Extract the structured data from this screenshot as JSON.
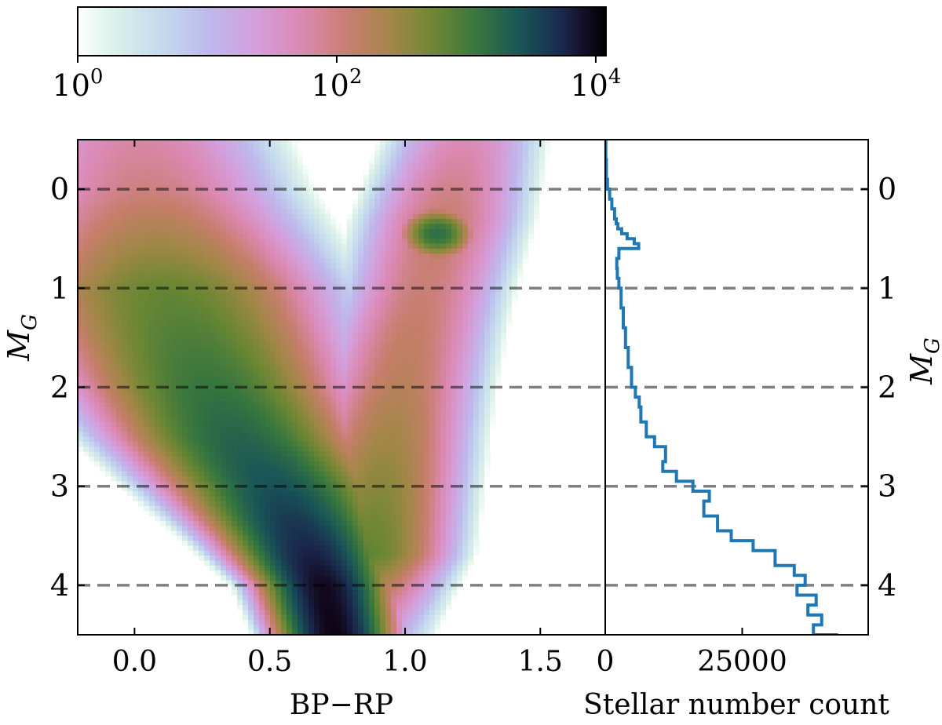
{
  "chart_data": [
    {
      "type": "heatmap",
      "xlabel": "BP−RP",
      "ylabel_main": "M",
      "ylabel_sub": "G",
      "xlim": [
        -0.21,
        1.74
      ],
      "ylim": [
        4.5,
        -0.5
      ],
      "xticks": [
        {
          "value": 0.0,
          "label": "0.0"
        },
        {
          "value": 0.5,
          "label": "0.5"
        },
        {
          "value": 1.0,
          "label": "1.0"
        },
        {
          "value": 1.5,
          "label": "1.5"
        }
      ],
      "yticks": [
        {
          "value": 0,
          "label": "0"
        },
        {
          "value": 1,
          "label": "1"
        },
        {
          "value": 2,
          "label": "2"
        },
        {
          "value": 3,
          "label": "3"
        },
        {
          "value": 4,
          "label": "4"
        }
      ],
      "dashed_lines_at": [
        0,
        1,
        2,
        3,
        4
      ],
      "colorbar": {
        "scale": "log",
        "range": [
          1,
          12000
        ],
        "colormap": "cubehelix_r",
        "tick_labels": [
          {
            "value": 1,
            "base": "10",
            "exp": "0"
          },
          {
            "value": 100,
            "base": "10",
            "exp": "2"
          },
          {
            "value": 10000,
            "base": "10",
            "exp": "4"
          }
        ]
      },
      "density_features": [
        {
          "feature": "main-sequence-turnoff",
          "peak_bp_rp": 0.72,
          "peak_mg": 4.3,
          "peak_count": 11000
        },
        {
          "feature": "red-clump",
          "bp_rp": 1.12,
          "mg": 0.45,
          "count": 1500
        }
      ]
    },
    {
      "type": "line",
      "style": "step",
      "xlabel": "Stellar number count",
      "ylabel_main": "M",
      "ylabel_sub": "G",
      "xlim": [
        0,
        48000
      ],
      "xticks": [
        {
          "value": 0,
          "label": "0"
        },
        {
          "value": 25000,
          "label": "25000"
        }
      ],
      "yticks": [
        {
          "value": 0,
          "label": "0"
        },
        {
          "value": 1,
          "label": "1"
        },
        {
          "value": 2,
          "label": "2"
        },
        {
          "value": 3,
          "label": "3"
        },
        {
          "value": 4,
          "label": "4"
        }
      ],
      "line_color": "#1f77b4",
      "series": [
        {
          "x": [
            100,
            200,
            400,
            800,
            1200,
            1700,
            2000,
            2300,
            3000,
            4000,
            5300,
            6100,
            2500,
            2100,
            2200,
            2500,
            2900,
            3300,
            3700,
            4200,
            4800,
            5500,
            6200,
            6500,
            7500,
            9000,
            11000,
            10500,
            13000,
            16000,
            19000,
            18000,
            20500,
            23000,
            27000,
            31000,
            34500,
            36500,
            35000,
            38500,
            37000,
            39500,
            38000,
            42500
          ],
          "y": [
            -0.5,
            -0.3,
            -0.1,
            0.0,
            0.1,
            0.2,
            0.3,
            0.35,
            0.4,
            0.45,
            0.5,
            0.55,
            0.6,
            0.7,
            0.8,
            0.9,
            1.0,
            1.2,
            1.4,
            1.6,
            1.8,
            2.0,
            2.1,
            2.2,
            2.35,
            2.5,
            2.6,
            2.75,
            2.85,
            2.95,
            3.05,
            3.15,
            3.3,
            3.45,
            3.55,
            3.65,
            3.8,
            3.9,
            4.0,
            4.1,
            4.2,
            4.3,
            4.4,
            4.5
          ]
        }
      ]
    }
  ]
}
